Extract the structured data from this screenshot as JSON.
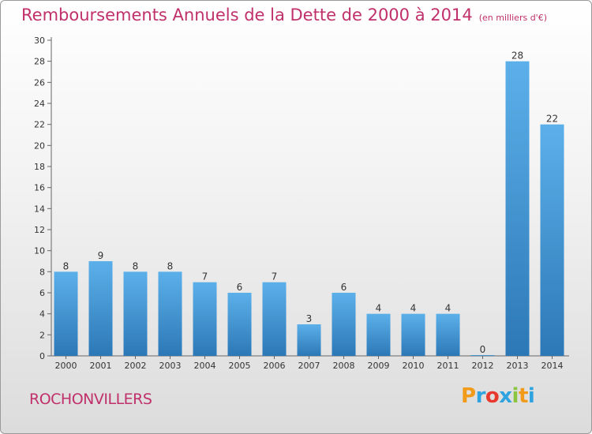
{
  "header": {
    "title": "Remboursements Annuels de la Dette de 2000 à 2014",
    "unit": "(en milliers d'€)"
  },
  "footer": {
    "city": "ROCHONVILLERS",
    "logo_text": "Proxiti",
    "logo_colors": [
      "#f29a1a",
      "#2fa3df",
      "#e8392f",
      "#2fa3df",
      "#8bc540",
      "#f29a1a",
      "#2fa3df"
    ]
  },
  "colors": {
    "title": "#c0306a",
    "bar_top": "#5cb0ea",
    "bar_bottom": "#2c78b6",
    "axis": "#666666"
  },
  "chart_data": {
    "type": "bar",
    "title": "Remboursements Annuels de la Dette de 2000 à 2014",
    "subtitle": "(en milliers d'€)",
    "categories": [
      "2000",
      "2001",
      "2002",
      "2003",
      "2004",
      "2005",
      "2006",
      "2007",
      "2008",
      "2009",
      "2010",
      "2011",
      "2012",
      "2013",
      "2014"
    ],
    "values": [
      8,
      9,
      8,
      8,
      7,
      6,
      7,
      3,
      6,
      4,
      4,
      4,
      0,
      28,
      22
    ],
    "data_labels": [
      "8",
      "9",
      "8",
      "8",
      "7",
      "6",
      "7",
      "3",
      "6",
      "4",
      "4",
      "4",
      "0",
      "28",
      "22"
    ],
    "ylim": [
      0,
      30
    ],
    "yticks": [
      0,
      2,
      4,
      6,
      8,
      10,
      12,
      14,
      16,
      18,
      20,
      22,
      24,
      26,
      28,
      30
    ],
    "ytick_labels": [
      "0",
      "2",
      "4",
      "6",
      "8",
      "10",
      "12",
      "14",
      "16",
      "18",
      "20",
      "22",
      "24",
      "26",
      "28",
      "30"
    ],
    "grid": false,
    "legend": "none"
  }
}
